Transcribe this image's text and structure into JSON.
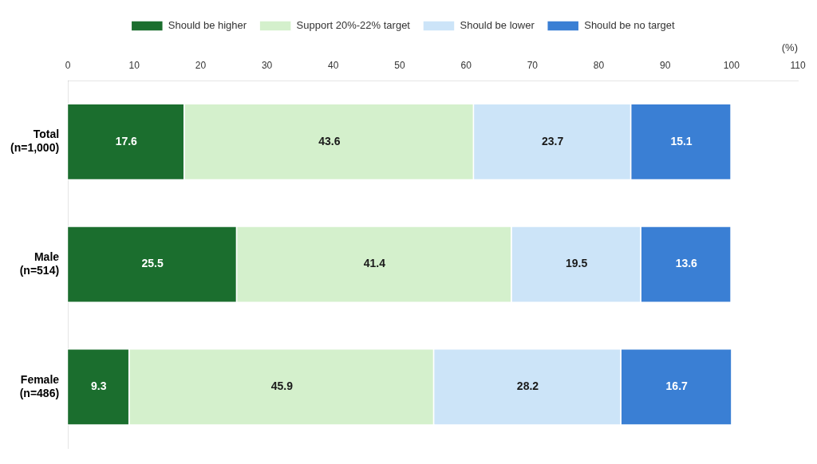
{
  "chart_data": {
    "type": "bar",
    "orientation": "horizontal",
    "stacked": true,
    "categories": [
      "Total\n(n=1,000)",
      "Male\n(n=514)",
      "Female\n(n=486)"
    ],
    "series": [
      {
        "name": "Should be higher",
        "color": "#1b6e2e",
        "values": [
          17.6,
          25.5,
          9.3
        ]
      },
      {
        "name": "Support 20%-22% target",
        "color": "#d4f0cc",
        "values": [
          43.6,
          41.4,
          45.9
        ]
      },
      {
        "name": "Should be lower",
        "color": "#cce4f8",
        "values": [
          23.7,
          19.5,
          28.2
        ]
      },
      {
        "name": "Should be no target",
        "color": "#3a7fd4",
        "values": [
          15.1,
          13.6,
          16.7
        ]
      }
    ],
    "xlabel": "(%)",
    "xlim": [
      0,
      110
    ],
    "xticks": [
      0,
      10,
      20,
      30,
      40,
      50,
      60,
      70,
      80,
      90,
      100,
      110
    ],
    "grid": false,
    "legend": "top",
    "data_labels": true
  }
}
